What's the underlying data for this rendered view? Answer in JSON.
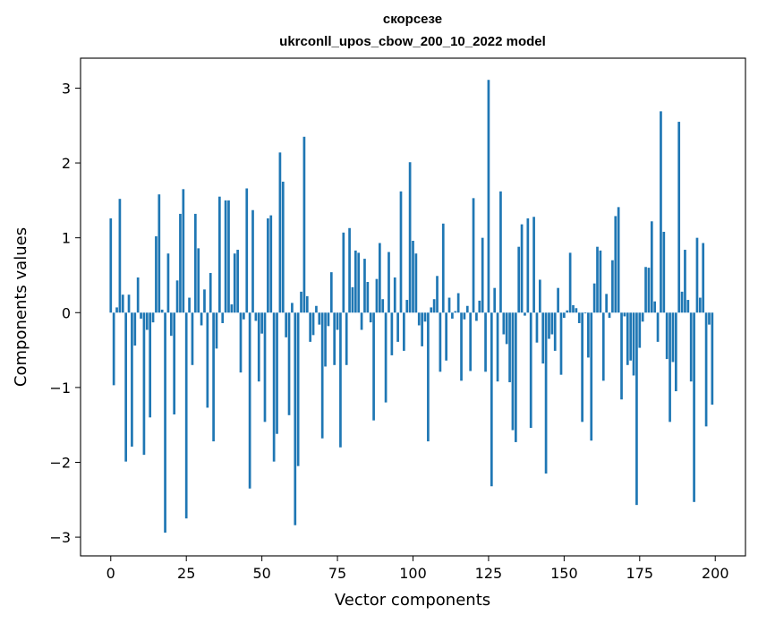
{
  "chart_data": {
    "type": "bar",
    "title": "скорсезе",
    "subtitle": "ukrconll_upos_cbow_200_10_2022 model",
    "xlabel": "Vector components",
    "ylabel": "Components values",
    "xlim": [
      -10,
      210
    ],
    "ylim": [
      -3.25,
      3.4
    ],
    "xticks": [
      0,
      25,
      50,
      75,
      100,
      125,
      150,
      175,
      200
    ],
    "yticks": [
      -3,
      -2,
      -1,
      0,
      1,
      2,
      3
    ],
    "xtick_labels": [
      "0",
      "25",
      "50",
      "75",
      "100",
      "125",
      "150",
      "175",
      "200"
    ],
    "ytick_labels": [
      "−3",
      "−2",
      "−1",
      "0",
      "1",
      "2",
      "3"
    ],
    "bar_color": "#1f77b4",
    "grid": false,
    "x": [
      0,
      1,
      2,
      3,
      4,
      5,
      6,
      7,
      8,
      9,
      10,
      11,
      12,
      13,
      14,
      15,
      16,
      17,
      18,
      19,
      20,
      21,
      22,
      23,
      24,
      25,
      26,
      27,
      28,
      29,
      30,
      31,
      32,
      33,
      34,
      35,
      36,
      37,
      38,
      39,
      40,
      41,
      42,
      43,
      44,
      45,
      46,
      47,
      48,
      49,
      50,
      51,
      52,
      53,
      54,
      55,
      56,
      57,
      58,
      59,
      60,
      61,
      62,
      63,
      64,
      65,
      66,
      67,
      68,
      69,
      70,
      71,
      72,
      73,
      74,
      75,
      76,
      77,
      78,
      79,
      80,
      81,
      82,
      83,
      84,
      85,
      86,
      87,
      88,
      89,
      90,
      91,
      92,
      93,
      94,
      95,
      96,
      97,
      98,
      99,
      100,
      101,
      102,
      103,
      104,
      105,
      106,
      107,
      108,
      109,
      110,
      111,
      112,
      113,
      114,
      115,
      116,
      117,
      118,
      119,
      120,
      121,
      122,
      123,
      124,
      125,
      126,
      127,
      128,
      129,
      130,
      131,
      132,
      133,
      134,
      135,
      136,
      137,
      138,
      139,
      140,
      141,
      142,
      143,
      144,
      145,
      146,
      147,
      148,
      149,
      150,
      151,
      152,
      153,
      154,
      155,
      156,
      157,
      158,
      159,
      160,
      161,
      162,
      163,
      164,
      165,
      166,
      167,
      168,
      169,
      170,
      171,
      172,
      173,
      174,
      175,
      176,
      177,
      178,
      179,
      180,
      181,
      182,
      183,
      184,
      185,
      186,
      187,
      188,
      189,
      190,
      191,
      192,
      193,
      194,
      195,
      196,
      197,
      198,
      199
    ],
    "values": [
      1.26,
      -0.97,
      0.07,
      1.52,
      0.24,
      -1.99,
      0.24,
      -1.79,
      -0.44,
      0.47,
      -0.08,
      -1.9,
      -0.23,
      -1.4,
      -0.13,
      1.02,
      1.58,
      0.04,
      -2.94,
      0.79,
      -0.31,
      -1.36,
      0.43,
      1.32,
      1.65,
      -2.75,
      0.2,
      -0.7,
      1.32,
      0.86,
      -0.17,
      0.31,
      -1.27,
      0.53,
      -1.72,
      -0.48,
      1.55,
      -0.14,
      1.5,
      1.5,
      0.11,
      0.79,
      0.84,
      -0.8,
      -0.09,
      1.66,
      -2.35,
      1.37,
      -0.11,
      -0.92,
      -0.28,
      -1.46,
      1.26,
      1.3,
      -1.99,
      -1.62,
      2.14,
      1.75,
      -0.33,
      -1.37,
      0.13,
      -2.84,
      -2.05,
      0.28,
      2.35,
      0.22,
      -0.39,
      -0.3,
      0.09,
      -0.16,
      -1.68,
      -0.72,
      -0.18,
      0.54,
      -0.7,
      -0.23,
      -1.8,
      1.07,
      -0.7,
      1.13,
      0.34,
      0.83,
      0.8,
      -0.23,
      0.72,
      0.41,
      -0.13,
      -1.44,
      0.45,
      0.93,
      0.18,
      -1.2,
      0.81,
      -0.57,
      0.47,
      -0.39,
      1.62,
      -0.51,
      0.17,
      2.01,
      0.96,
      0.79,
      -0.17,
      -0.45,
      -0.12,
      -1.72,
      0.07,
      0.18,
      0.49,
      -0.79,
      1.19,
      -0.64,
      0.2,
      -0.08,
      0.02,
      0.26,
      -0.91,
      -0.09,
      0.09,
      -0.78,
      1.53,
      -0.11,
      0.16,
      1.0,
      -0.79,
      3.11,
      -2.32,
      0.33,
      -0.92,
      1.62,
      -0.29,
      -0.42,
      -0.93,
      -1.57,
      -1.73,
      0.88,
      1.18,
      -0.04,
      1.26,
      -1.54,
      1.28,
      -0.4,
      0.44,
      -0.68,
      -2.15,
      -0.35,
      -0.29,
      -0.51,
      0.33,
      -0.83,
      -0.07,
      0.03,
      0.8,
      0.1,
      0.06,
      -0.14,
      -1.46,
      -0.01,
      -0.6,
      -1.71,
      0.39,
      0.88,
      0.83,
      -0.91,
      0.25,
      -0.07,
      0.7,
      1.29,
      1.41,
      -1.16,
      -0.05,
      -0.7,
      -0.64,
      -0.84,
      -2.57,
      -0.47,
      -0.12,
      0.61,
      0.6,
      1.22,
      0.15,
      -0.39,
      2.69,
      1.08,
      -0.62,
      -1.46,
      -0.66,
      -1.05,
      2.55,
      0.28,
      0.84,
      0.17,
      -0.92,
      -2.53,
      1.0,
      0.2,
      0.93,
      -1.52,
      -0.16,
      -1.23
    ]
  }
}
